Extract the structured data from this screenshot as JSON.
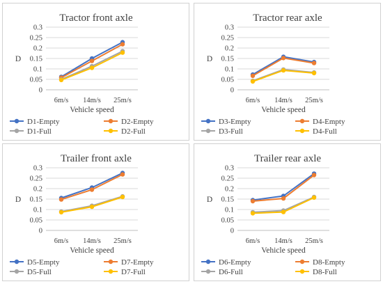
{
  "colors": {
    "blue": "#4472c4",
    "orange": "#ed7d31",
    "gray": "#a5a5a5",
    "yellow": "#ffc000",
    "grid": "#d9d9d9"
  },
  "chart_data": [
    {
      "type": "line",
      "title": "Tractor front axle",
      "xlabel": "Vehicle speed",
      "ylabel": "D",
      "categories": [
        "6m/s",
        "14m/s",
        "25m/s"
      ],
      "ylim": [
        0,
        0.3
      ],
      "yticks": [
        "0",
        "0.05",
        "0.1",
        "0.15",
        "0.2",
        "0.25",
        "0.3"
      ],
      "grid": true,
      "legend_position": "bottom",
      "series": [
        {
          "name": "D1-Empty",
          "color": "#4472c4",
          "values": [
            0.062,
            0.15,
            0.228
          ]
        },
        {
          "name": "D2-Empty",
          "color": "#ed7d31",
          "values": [
            0.058,
            0.138,
            0.218
          ]
        },
        {
          "name": "D1-Full",
          "color": "#a5a5a5",
          "values": [
            0.05,
            0.113,
            0.185
          ]
        },
        {
          "name": "D2-Full",
          "color": "#ffc000",
          "values": [
            0.047,
            0.105,
            0.178
          ]
        }
      ]
    },
    {
      "type": "line",
      "title": "Tractor rear axle",
      "xlabel": "Vehicle speed",
      "ylabel": "D",
      "categories": [
        "6m/s",
        "14m/s",
        "25m/s"
      ],
      "ylim": [
        0,
        0.3
      ],
      "yticks": [
        "0",
        "0.05",
        "0.1",
        "0.15",
        "0.2",
        "0.25",
        "0.3"
      ],
      "grid": true,
      "legend_position": "bottom",
      "series": [
        {
          "name": "D3-Empty",
          "color": "#4472c4",
          "values": [
            0.073,
            0.158,
            0.133
          ]
        },
        {
          "name": "D4-Empty",
          "color": "#ed7d31",
          "values": [
            0.067,
            0.152,
            0.128
          ]
        },
        {
          "name": "D3-Full",
          "color": "#a5a5a5",
          "values": [
            0.043,
            0.097,
            0.083
          ]
        },
        {
          "name": "D4-Full",
          "color": "#ffc000",
          "values": [
            0.04,
            0.093,
            0.08
          ]
        }
      ]
    },
    {
      "type": "line",
      "title": "Trailer front axle",
      "xlabel": "Vehicle speed",
      "ylabel": "D",
      "categories": [
        "6m/s",
        "14m/s",
        "25m/s"
      ],
      "ylim": [
        0,
        0.3
      ],
      "yticks": [
        "0",
        "0.05",
        "0.1",
        "0.15",
        "0.2",
        "0.25",
        "0.3"
      ],
      "grid": true,
      "legend_position": "bottom",
      "series": [
        {
          "name": "D5-Empty",
          "color": "#4472c4",
          "values": [
            0.155,
            0.205,
            0.275
          ]
        },
        {
          "name": "D7-Empty",
          "color": "#ed7d31",
          "values": [
            0.148,
            0.195,
            0.268
          ]
        },
        {
          "name": "D5-Full",
          "color": "#a5a5a5",
          "values": [
            0.09,
            0.118,
            0.163
          ]
        },
        {
          "name": "D7-Full",
          "color": "#ffc000",
          "values": [
            0.087,
            0.113,
            0.16
          ]
        }
      ]
    },
    {
      "type": "line",
      "title": "Trailer rear axle",
      "xlabel": "Vehicle speed",
      "ylabel": "D",
      "categories": [
        "6m/s",
        "14m/s",
        "25m/s"
      ],
      "ylim": [
        0,
        0.3
      ],
      "yticks": [
        "0",
        "0.05",
        "0.1",
        "0.15",
        "0.2",
        "0.25",
        "0.3"
      ],
      "grid": true,
      "legend_position": "bottom",
      "series": [
        {
          "name": "D6-Empty",
          "color": "#4472c4",
          "values": [
            0.145,
            0.165,
            0.272
          ]
        },
        {
          "name": "D8-Empty",
          "color": "#ed7d31",
          "values": [
            0.14,
            0.153,
            0.265
          ]
        },
        {
          "name": "D6-Full",
          "color": "#a5a5a5",
          "values": [
            0.087,
            0.095,
            0.16
          ]
        },
        {
          "name": "D8-Full",
          "color": "#ffc000",
          "values": [
            0.082,
            0.088,
            0.157
          ]
        }
      ]
    }
  ]
}
